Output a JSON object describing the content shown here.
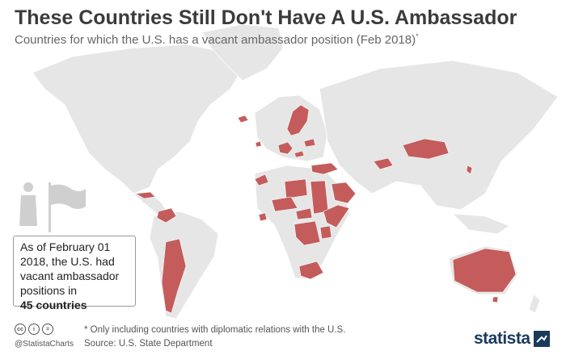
{
  "header": {
    "title": "These Countries Still Don't Have A U.S. Ambassador",
    "subtitle": "Countries for which the U.S. has a vacant ambassador position (Feb 2018)",
    "subtitle_mark": "*"
  },
  "callout": {
    "line1": "As of February 01",
    "line2": "2018, the U.S. had",
    "line3": "vacant ambassador",
    "line4": "positions in",
    "count": "45 countries"
  },
  "footer": {
    "handle": "@StatistaCharts",
    "footnote": "* Only including countries with diplomatic relations with the U.S.",
    "source": "Source: U.S. State Department",
    "logo": "statista"
  },
  "icons": {
    "license": [
      "cc-icon",
      "attribution-icon",
      "equals-icon"
    ],
    "figure": "ambassador-figure-icon",
    "flag": "flag-icon",
    "logo_mark": "statista-logo-icon"
  },
  "colors": {
    "land": "#e6e6e6",
    "highlight": "#c45c5c",
    "background": "#ffffff",
    "title": "#3b3b3b"
  }
}
